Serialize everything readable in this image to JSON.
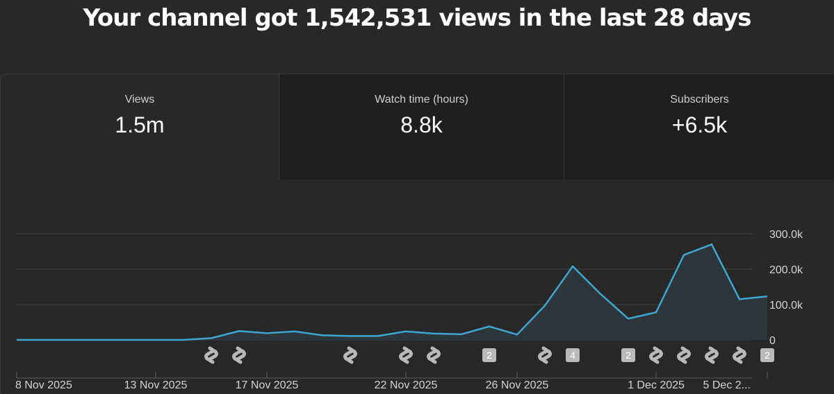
{
  "header": {
    "title": "Your channel got 1,542,531 views in the last 28 days"
  },
  "tabs": [
    {
      "label": "Views",
      "value": "1.5m",
      "selected": true
    },
    {
      "label": "Watch time (hours)",
      "value": "8.8k",
      "selected": false
    },
    {
      "label": "Subscribers",
      "value": "+6.5k",
      "selected": false
    }
  ],
  "colors": {
    "line": "#3ea6d2",
    "area": "#2d363b",
    "grid": "#444444",
    "marker": "#b9b9b9"
  },
  "chart_data": {
    "type": "area",
    "x": [
      "8 Nov 2025",
      "9 Nov 2025",
      "10 Nov 2025",
      "11 Nov 2025",
      "12 Nov 2025",
      "13 Nov 2025",
      "14 Nov 2025",
      "15 Nov 2025",
      "16 Nov 2025",
      "17 Nov 2025",
      "18 Nov 2025",
      "19 Nov 2025",
      "20 Nov 2025",
      "21 Nov 2025",
      "22 Nov 2025",
      "23 Nov 2025",
      "24 Nov 2025",
      "25 Nov 2025",
      "26 Nov 2025",
      "27 Nov 2025",
      "28 Nov 2025",
      "29 Nov 2025",
      "30 Nov 2025",
      "1 Dec 2025",
      "2 Dec 2025",
      "3 Dec 2025",
      "4 Dec 2025",
      "5 Dec 2025"
    ],
    "series": [
      {
        "values": [
          0,
          0,
          0,
          0,
          0,
          0,
          0,
          5000,
          25000,
          19000,
          24000,
          13000,
          11000,
          11000,
          24000,
          18000,
          16000,
          38000,
          15000,
          97000,
          208000,
          130000,
          60000,
          78000,
          240000,
          270000,
          115000,
          123000
        ]
      }
    ],
    "x_tick_labels": [
      "8 Nov 2025",
      "13 Nov 2025",
      "17 Nov 2025",
      "22 Nov 2025",
      "26 Nov 2025",
      "1 Dec 2025",
      "5 Dec 2..."
    ],
    "x_tick_index": [
      0,
      5,
      9,
      14,
      18,
      23,
      27
    ],
    "y_ticks": [
      0,
      100000,
      200000,
      300000
    ],
    "y_tick_labels": [
      "0",
      "100.0k",
      "200.0k",
      "300.0k"
    ],
    "ylim": [
      0,
      300000
    ],
    "grid": true,
    "upload_markers": [
      {
        "day": "15 Nov 2025",
        "kind": "short"
      },
      {
        "day": "16 Nov 2025",
        "kind": "short"
      },
      {
        "day": "20 Nov 2025",
        "kind": "short"
      },
      {
        "day": "22 Nov 2025",
        "kind": "short"
      },
      {
        "day": "23 Nov 2025",
        "kind": "short"
      },
      {
        "day": "25 Nov 2025",
        "kind": "count",
        "label": "2"
      },
      {
        "day": "27 Nov 2025",
        "kind": "short"
      },
      {
        "day": "28 Nov 2025",
        "kind": "count",
        "label": "4"
      },
      {
        "day": "30 Nov 2025",
        "kind": "count",
        "label": "2"
      },
      {
        "day": "1 Dec 2025",
        "kind": "short"
      },
      {
        "day": "2 Dec 2025",
        "kind": "short"
      },
      {
        "day": "3 Dec 2025",
        "kind": "short"
      },
      {
        "day": "4 Dec 2025",
        "kind": "short"
      },
      {
        "day": "5 Dec 2025",
        "kind": "count",
        "label": "2"
      }
    ]
  }
}
